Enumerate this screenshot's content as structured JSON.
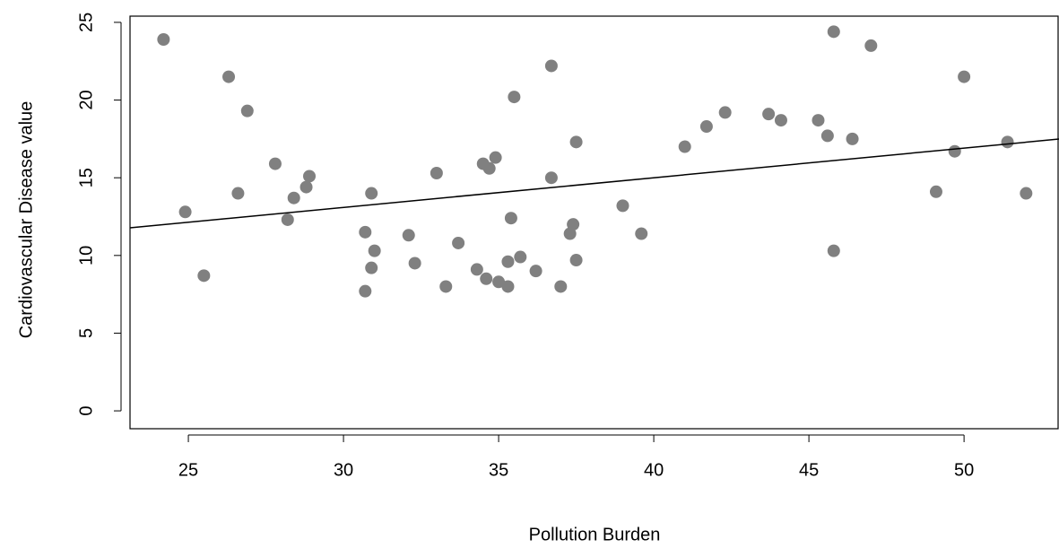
{
  "chart_data": {
    "type": "scatter",
    "xlabel": "Pollution Burden",
    "ylabel": "Cardiovascular Disease value",
    "xlim": [
      23.12,
      53.06
    ],
    "ylim": [
      -1.15,
      25.4
    ],
    "xticks": [
      25,
      30,
      35,
      40,
      45,
      50
    ],
    "yticks": [
      0,
      5,
      10,
      15,
      20,
      25
    ],
    "series": [
      {
        "color": "#808080",
        "x": [
          24.2,
          24.9,
          25.5,
          26.3,
          26.6,
          26.9,
          27.8,
          28.2,
          28.4,
          28.8,
          28.9,
          30.7,
          30.7,
          30.9,
          31.0,
          30.9,
          32.1,
          32.3,
          33.0,
          33.3,
          33.7,
          34.3,
          34.5,
          34.6,
          34.7,
          34.9,
          35.0,
          35.3,
          35.3,
          35.4,
          35.5,
          35.7,
          36.2,
          36.7,
          36.7,
          37.0,
          37.3,
          37.4,
          37.5,
          37.5,
          39.0,
          39.6,
          41.0,
          41.7,
          42.3,
          43.7,
          44.1,
          45.3,
          45.6,
          45.8,
          45.8,
          46.4,
          47.0,
          49.1,
          49.7,
          50.0,
          51.4,
          52.0
        ],
        "values": [
          23.9,
          12.8,
          8.7,
          21.5,
          14.0,
          19.3,
          15.9,
          12.3,
          13.7,
          14.4,
          15.1,
          11.5,
          7.7,
          14.0,
          10.3,
          9.2,
          11.3,
          9.5,
          15.3,
          8.0,
          10.8,
          9.1,
          15.9,
          8.5,
          15.6,
          16.3,
          8.3,
          8.0,
          9.6,
          12.4,
          20.2,
          9.9,
          9.0,
          22.2,
          15.0,
          8.0,
          11.4,
          12.0,
          17.3,
          9.7,
          13.2,
          11.4,
          17.0,
          18.3,
          19.2,
          19.1,
          18.7,
          18.7,
          17.7,
          24.4,
          10.3,
          17.5,
          23.5,
          14.1,
          16.7,
          21.5,
          17.3,
          14.0
        ]
      },
      {
        "type": "line",
        "color": "#000000",
        "x": [
          23.12,
          53.06
        ],
        "values": [
          11.78,
          17.49
        ]
      }
    ]
  }
}
